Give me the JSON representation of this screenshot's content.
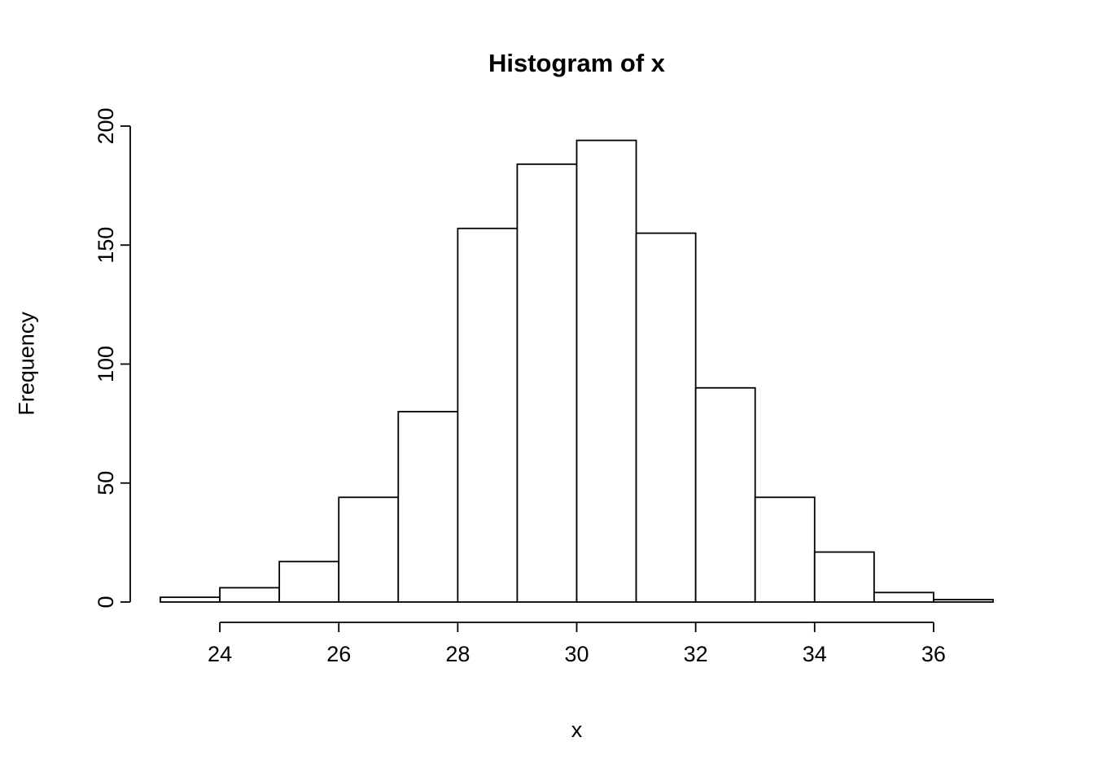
{
  "chart_data": {
    "type": "bar",
    "subtype": "histogram",
    "title": "Histogram of x",
    "xlabel": "x",
    "ylabel": "Frequency",
    "bin_edges": [
      23,
      24,
      25,
      26,
      27,
      28,
      29,
      30,
      31,
      32,
      33,
      34,
      35,
      36,
      37
    ],
    "values": [
      2,
      6,
      17,
      44,
      80,
      157,
      184,
      194,
      155,
      90,
      44,
      21,
      4,
      1
    ],
    "x_ticks": [
      24,
      26,
      28,
      30,
      32,
      34,
      36
    ],
    "y_ticks": [
      0,
      50,
      100,
      150,
      200
    ],
    "xlim": [
      23,
      37
    ],
    "ylim": [
      0,
      200
    ],
    "grid": false,
    "legend": "none",
    "bar_fill": "#ffffff",
    "bar_stroke": "#000000",
    "axis_color": "#000000",
    "background": "#ffffff"
  }
}
